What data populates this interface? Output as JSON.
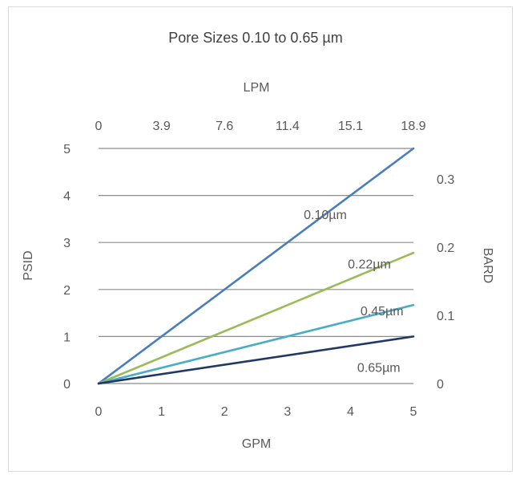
{
  "chart_data": {
    "type": "line",
    "title": "Pore Sizes 0.10 to 0.65 µm",
    "xlabel": "GPM",
    "ylabel": "PSID",
    "x2label": "LPM",
    "y2label": "BARD",
    "xlim": [
      0,
      5
    ],
    "ylim": [
      0,
      5
    ],
    "y2lim": [
      0,
      0.345
    ],
    "x_ticks": [
      "0",
      "1",
      "2",
      "3",
      "4",
      "5"
    ],
    "y_ticks": [
      "0",
      "1",
      "2",
      "3",
      "4",
      "5"
    ],
    "x2_ticks": [
      "0",
      "3.9",
      "7.6",
      "11.4",
      "15.1",
      "18.9"
    ],
    "y2_ticks": [
      {
        "label": "0",
        "value": 0
      },
      {
        "label": "0.1",
        "value": 0.1
      },
      {
        "label": "0.2",
        "value": 0.2
      },
      {
        "label": "0.3",
        "value": 0.3
      }
    ],
    "grid": true,
    "series": [
      {
        "name": "0.10µm",
        "color": "#4a7ebb",
        "x": [
          0,
          5
        ],
        "y": [
          0,
          5
        ],
        "label_at": [
          3.6,
          3.6
        ]
      },
      {
        "name": "0.22µm",
        "color": "#9bbb59",
        "x": [
          0,
          5
        ],
        "y": [
          0,
          2.78
        ],
        "label_at": [
          4.3,
          2.55
        ]
      },
      {
        "name": "0.45µm",
        "color": "#4bacc6",
        "x": [
          0,
          5
        ],
        "y": [
          0,
          1.67
        ],
        "label_at": [
          4.5,
          1.55
        ]
      },
      {
        "name": "0.65µm",
        "color": "#1f3864",
        "x": [
          0,
          5
        ],
        "y": [
          0,
          1.0
        ],
        "label_at": [
          4.45,
          0.35
        ]
      }
    ]
  }
}
